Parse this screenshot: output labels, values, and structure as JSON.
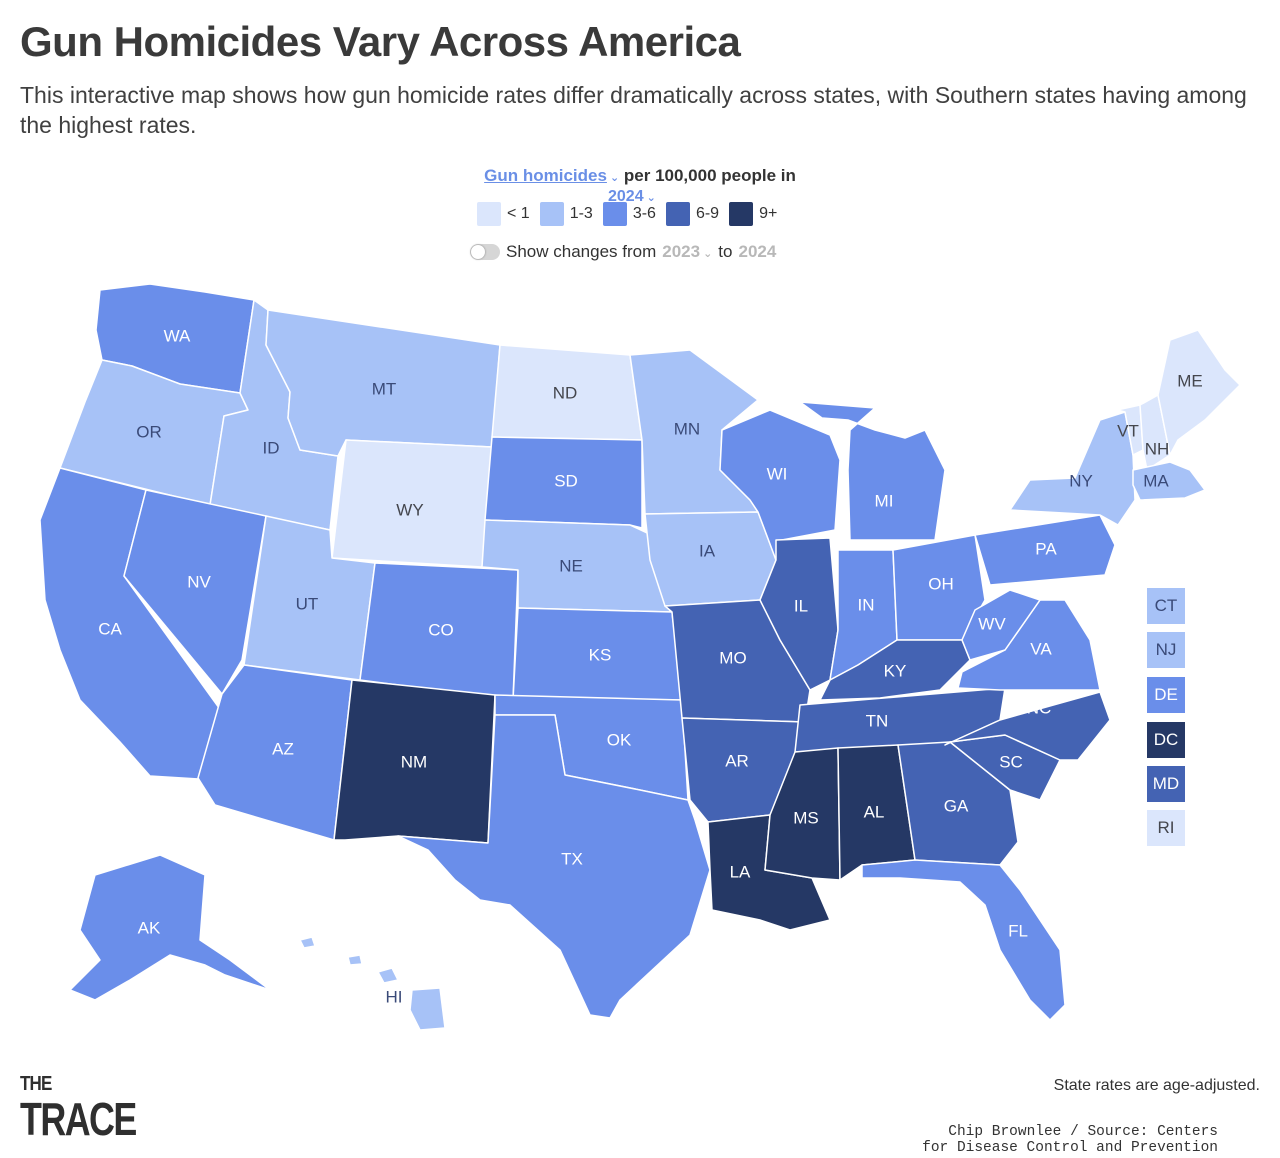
{
  "header": {
    "title": "Gun Homicides Vary Across America",
    "subtitle": "This interactive map shows how gun homicide rates differ dramatically across states, with Southern states having among the highest rates."
  },
  "controls": {
    "metric": "Gun homicides",
    "metric_suffix": "per 100,000 people in",
    "year": "2024",
    "toggle_label": "Show changes from",
    "toggle_on": false,
    "compare_from": "2023",
    "compare_to_word": "to",
    "compare_to": "2024",
    "legend": [
      {
        "label": "< 1",
        "color": "#dbe6fc"
      },
      {
        "label": "1-3",
        "color": "#a7c2f7"
      },
      {
        "label": "3-6",
        "color": "#6a8eea"
      },
      {
        "label": "6-9",
        "color": "#4463b3"
      },
      {
        "label": "9+",
        "color": "#253865"
      }
    ]
  },
  "map": {
    "bins": {
      "b0": {
        "fill": "#dbe6fc",
        "text": "#44464d"
      },
      "b1": {
        "fill": "#a7c2f7",
        "text": "#3a4a78"
      },
      "b2": {
        "fill": "#6a8eea",
        "text": "#ffffff"
      },
      "b3": {
        "fill": "#4463b3",
        "text": "#ffffff"
      },
      "b4": {
        "fill": "#253865",
        "text": "#ffffff"
      }
    },
    "states": {
      "WA": {
        "label": "WA",
        "bin": "b2"
      },
      "OR": {
        "label": "OR",
        "bin": "b1"
      },
      "CA": {
        "label": "CA",
        "bin": "b2"
      },
      "ID": {
        "label": "ID",
        "bin": "b1"
      },
      "NV": {
        "label": "NV",
        "bin": "b2"
      },
      "MT": {
        "label": "MT",
        "bin": "b1"
      },
      "WY": {
        "label": "WY",
        "bin": "b0"
      },
      "UT": {
        "label": "UT",
        "bin": "b1"
      },
      "AZ": {
        "label": "AZ",
        "bin": "b2"
      },
      "CO": {
        "label": "CO",
        "bin": "b2"
      },
      "NM": {
        "label": "NM",
        "bin": "b4"
      },
      "ND": {
        "label": "ND",
        "bin": "b0"
      },
      "SD": {
        "label": "SD",
        "bin": "b2"
      },
      "NE": {
        "label": "NE",
        "bin": "b1"
      },
      "KS": {
        "label": "KS",
        "bin": "b2"
      },
      "OK": {
        "label": "OK",
        "bin": "b2"
      },
      "TX": {
        "label": "TX",
        "bin": "b2"
      },
      "MN": {
        "label": "MN",
        "bin": "b1"
      },
      "IA": {
        "label": "IA",
        "bin": "b1"
      },
      "MO": {
        "label": "MO",
        "bin": "b3"
      },
      "AR": {
        "label": "AR",
        "bin": "b3"
      },
      "LA": {
        "label": "LA",
        "bin": "b4"
      },
      "WI": {
        "label": "WI",
        "bin": "b2"
      },
      "IL": {
        "label": "IL",
        "bin": "b3"
      },
      "MI": {
        "label": "MI",
        "bin": "b2"
      },
      "IN": {
        "label": "IN",
        "bin": "b2"
      },
      "OH": {
        "label": "OH",
        "bin": "b2"
      },
      "KY": {
        "label": "KY",
        "bin": "b3"
      },
      "TN": {
        "label": "TN",
        "bin": "b3"
      },
      "MS": {
        "label": "MS",
        "bin": "b4"
      },
      "AL": {
        "label": "AL",
        "bin": "b4"
      },
      "GA": {
        "label": "GA",
        "bin": "b3"
      },
      "FL": {
        "label": "FL",
        "bin": "b2"
      },
      "SC": {
        "label": "SC",
        "bin": "b3"
      },
      "NC": {
        "label": "NC",
        "bin": "b3"
      },
      "VA": {
        "label": "VA",
        "bin": "b2"
      },
      "WV": {
        "label": "WV",
        "bin": "b2"
      },
      "PA": {
        "label": "PA",
        "bin": "b2"
      },
      "NY": {
        "label": "NY",
        "bin": "b1"
      },
      "VT": {
        "label": "VT",
        "bin": "b0"
      },
      "NH": {
        "label": "NH",
        "bin": "b0"
      },
      "ME": {
        "label": "ME",
        "bin": "b0"
      },
      "MA": {
        "label": "MA",
        "bin": "b1"
      },
      "AK": {
        "label": "AK",
        "bin": "b2"
      },
      "HI": {
        "label": "HI",
        "bin": "b1"
      }
    },
    "small_states": [
      {
        "label": "CT",
        "bin": "b1"
      },
      {
        "label": "NJ",
        "bin": "b1"
      },
      {
        "label": "DE",
        "bin": "b2"
      },
      {
        "label": "DC",
        "bin": "b4"
      },
      {
        "label": "MD",
        "bin": "b3"
      },
      {
        "label": "RI",
        "bin": "b0"
      }
    ]
  },
  "footer": {
    "logo_line1": "THE",
    "logo_line2": "TRACE",
    "note": "State rates are age-adjusted.",
    "credit_line1": "Chip Brownlee / Source: Centers",
    "credit_line2": "for Disease Control and Prevention"
  }
}
